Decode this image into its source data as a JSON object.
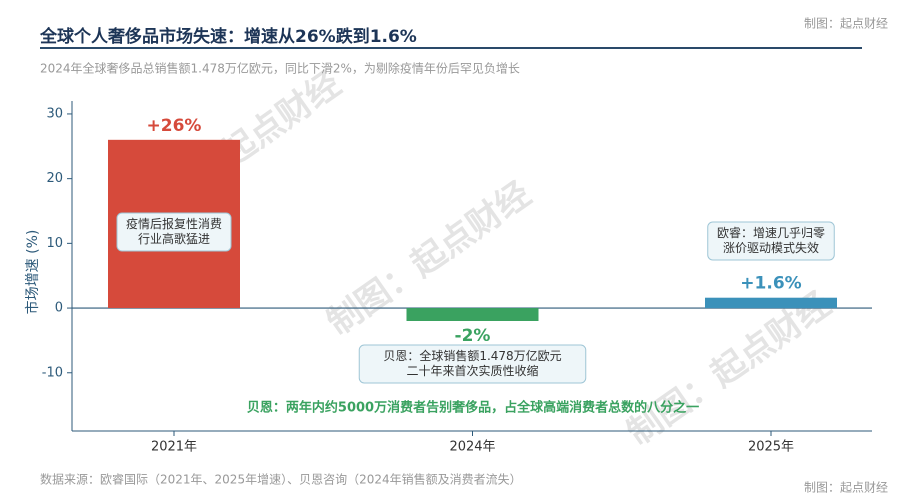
{
  "chart_data": {
    "type": "bar",
    "title": "全球个人奢侈品市场失速：增速从26%跌到1.6%",
    "subtitle": "2024年全球奢侈品总销售额1.478万亿欧元，同比下滑2%，为剔除疫情年份后罕见负增长",
    "watermark": "制图：起点财经",
    "y_label": "市场增速 (%)",
    "categories": [
      "2021年",
      "2024年",
      "2025年"
    ],
    "values": [
      26,
      -2,
      1.6
    ],
    "value_labels": [
      "+26%",
      "-2%",
      "+1.6%"
    ],
    "colors": [
      "#d64a3b",
      "#3aa260",
      "#3b91ba"
    ],
    "notes": [
      [
        "疫情后报复性消费",
        "行业高歌猛进"
      ],
      [
        "贝恩：全球销售额1.478万亿欧元",
        "二十年来首次实质性收缩"
      ],
      [
        "欧睿：增速几乎归零",
        "涨价驱动模式失效"
      ]
    ],
    "highlight": "贝恩：两年内约5000万消费者告别奢侈品，占全球高端消费者总数的八分之一",
    "source": "数据来源：欧睿国际（2021年、2025年增速）、贝恩咨询（2024年销售额及消费者流失）",
    "ylim": [
      -19,
      32
    ],
    "yticks": [
      -10,
      0,
      10,
      20,
      30
    ]
  }
}
